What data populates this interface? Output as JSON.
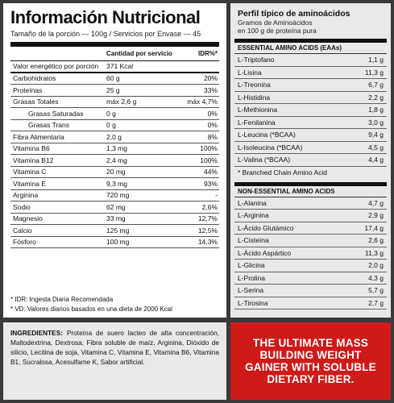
{
  "nutrition": {
    "title": "Información Nutricional",
    "serving": "Tamaño de la porción — 100g  /  Servicios por Envase — 45",
    "header": {
      "amount": "Cantidad por servicio",
      "idr": "IDR%*"
    },
    "rows": [
      {
        "name": "Valor energético por porción",
        "amount": "371 Kcal",
        "idr": "",
        "indent": false,
        "thick": true
      },
      {
        "name": "Carbohidratos",
        "amount": "60 g",
        "idr": "20%",
        "indent": false,
        "thick": false
      },
      {
        "name": "Proteínas",
        "amount": "25 g",
        "idr": "33%",
        "indent": false,
        "thick": false
      },
      {
        "name": "Grasas Totales",
        "amount": "máx 2,6 g",
        "idr": "máx 4,7%",
        "indent": false,
        "thick": false
      },
      {
        "name": "Grasas Saturadas",
        "amount": "0 g",
        "idr": "0%",
        "indent": true,
        "thick": false
      },
      {
        "name": "Grasas Trans",
        "amount": "0 g",
        "idr": "0%",
        "indent": true,
        "thick": false
      },
      {
        "name": "Fibra Alimentaria",
        "amount": "2,0 g",
        "idr": "8%",
        "indent": false,
        "thick": false
      },
      {
        "name": "Vitamina B6",
        "amount": "1,3 mg",
        "idr": "100%",
        "indent": false,
        "thick": false
      },
      {
        "name": "Vitamina B12",
        "amount": "2,4 mg",
        "idr": "100%",
        "indent": false,
        "thick": false
      },
      {
        "name": "Vitamina C",
        "amount": "20 mg",
        "idr": "44%",
        "indent": false,
        "thick": false
      },
      {
        "name": "Vitamina E",
        "amount": "9,3 mg",
        "idr": "93%",
        "indent": false,
        "thick": false
      },
      {
        "name": "Arginina",
        "amount": "720 mg",
        "idr": "-",
        "indent": false,
        "thick": false
      },
      {
        "name": "Sodio",
        "amount": "62 mg",
        "idr": "2,6%",
        "indent": false,
        "thick": false
      },
      {
        "name": "Magnesio",
        "amount": "33 mg",
        "idr": "12,7%",
        "indent": false,
        "thick": false
      },
      {
        "name": "Calcio",
        "amount": "125 mg",
        "idr": "12,5%",
        "indent": false,
        "thick": false
      },
      {
        "name": "Fósforo",
        "amount": "100 mg",
        "idr": "14,3%",
        "indent": false,
        "thick": false
      }
    ],
    "notes": [
      "* IDR: Ingesta Diaria Recomendada",
      "* VD: Valores diarios basados en una dieta de 2000 Kcal"
    ]
  },
  "amino": {
    "title": "Perfil típico de aminoácidos",
    "subtitle1": "Gramos de Aminoácidos",
    "subtitle2": "en 100 g de proteína pura",
    "essential_title": "ESSENTIAL AMINO ACIDS (EAAs)",
    "essential": [
      {
        "name": "L-Triptofano",
        "value": "1,1 g"
      },
      {
        "name": "L-Lisina",
        "value": "11,3 g"
      },
      {
        "name": "L-Treonina",
        "value": "6,7 g"
      },
      {
        "name": "L-Histidina",
        "value": "2,2 g"
      },
      {
        "name": "L-Methionina",
        "value": "1,8 g"
      },
      {
        "name": "L-Fenilanina",
        "value": "3,0 g"
      },
      {
        "name": "L-Leucina (*BCAA)",
        "value": "9,4 g"
      },
      {
        "name": "L-Isoleucina (*BCAA)",
        "value": "4,5 g"
      },
      {
        "name": "L-Valina (*BCAA)",
        "value": "4,4 g"
      }
    ],
    "bcaa_note": "* Branched Chain Amino Acid",
    "nonessential_title": "NON-ESSENTIAL AMINO ACIDS",
    "nonessential": [
      {
        "name": "L-Alanina",
        "value": "4,7 g"
      },
      {
        "name": "L-Arginina",
        "value": "2,9 g"
      },
      {
        "name": "L-Ácido Glutámico",
        "value": "17,4 g"
      },
      {
        "name": "L-Cisteína",
        "value": "2,6 g"
      },
      {
        "name": "L-Ácido Aspártico",
        "value": "11,3 g"
      },
      {
        "name": "L-Glicina",
        "value": "2,0 g"
      },
      {
        "name": "L-Prolina",
        "value": "4,3 g"
      },
      {
        "name": "L-Serina",
        "value": "5,7 g"
      },
      {
        "name": "L-Tirosina",
        "value": "2,7 g"
      }
    ]
  },
  "ingredients": {
    "label": "INGREDIENTES:",
    "text": " Proteína de suero lacteo de alta concentración, Maltodextrina, Dextrosa, Fibra soluble de maíz, Arginina, Dióxido de silicio, Lecitina de soja, Vitamina C, Vitamina E, Vitamina B6, Vitamina B1, Sucralosa, Acesulfame K, Sabor artificial."
  },
  "promo": {
    "lines": [
      "THE ULTIMATE MASS",
      "BUILDING WEIGHT",
      "GAINER WITH SOLUBLE",
      "DIETARY FIBER."
    ],
    "bg_color": "#cf1a1a"
  }
}
